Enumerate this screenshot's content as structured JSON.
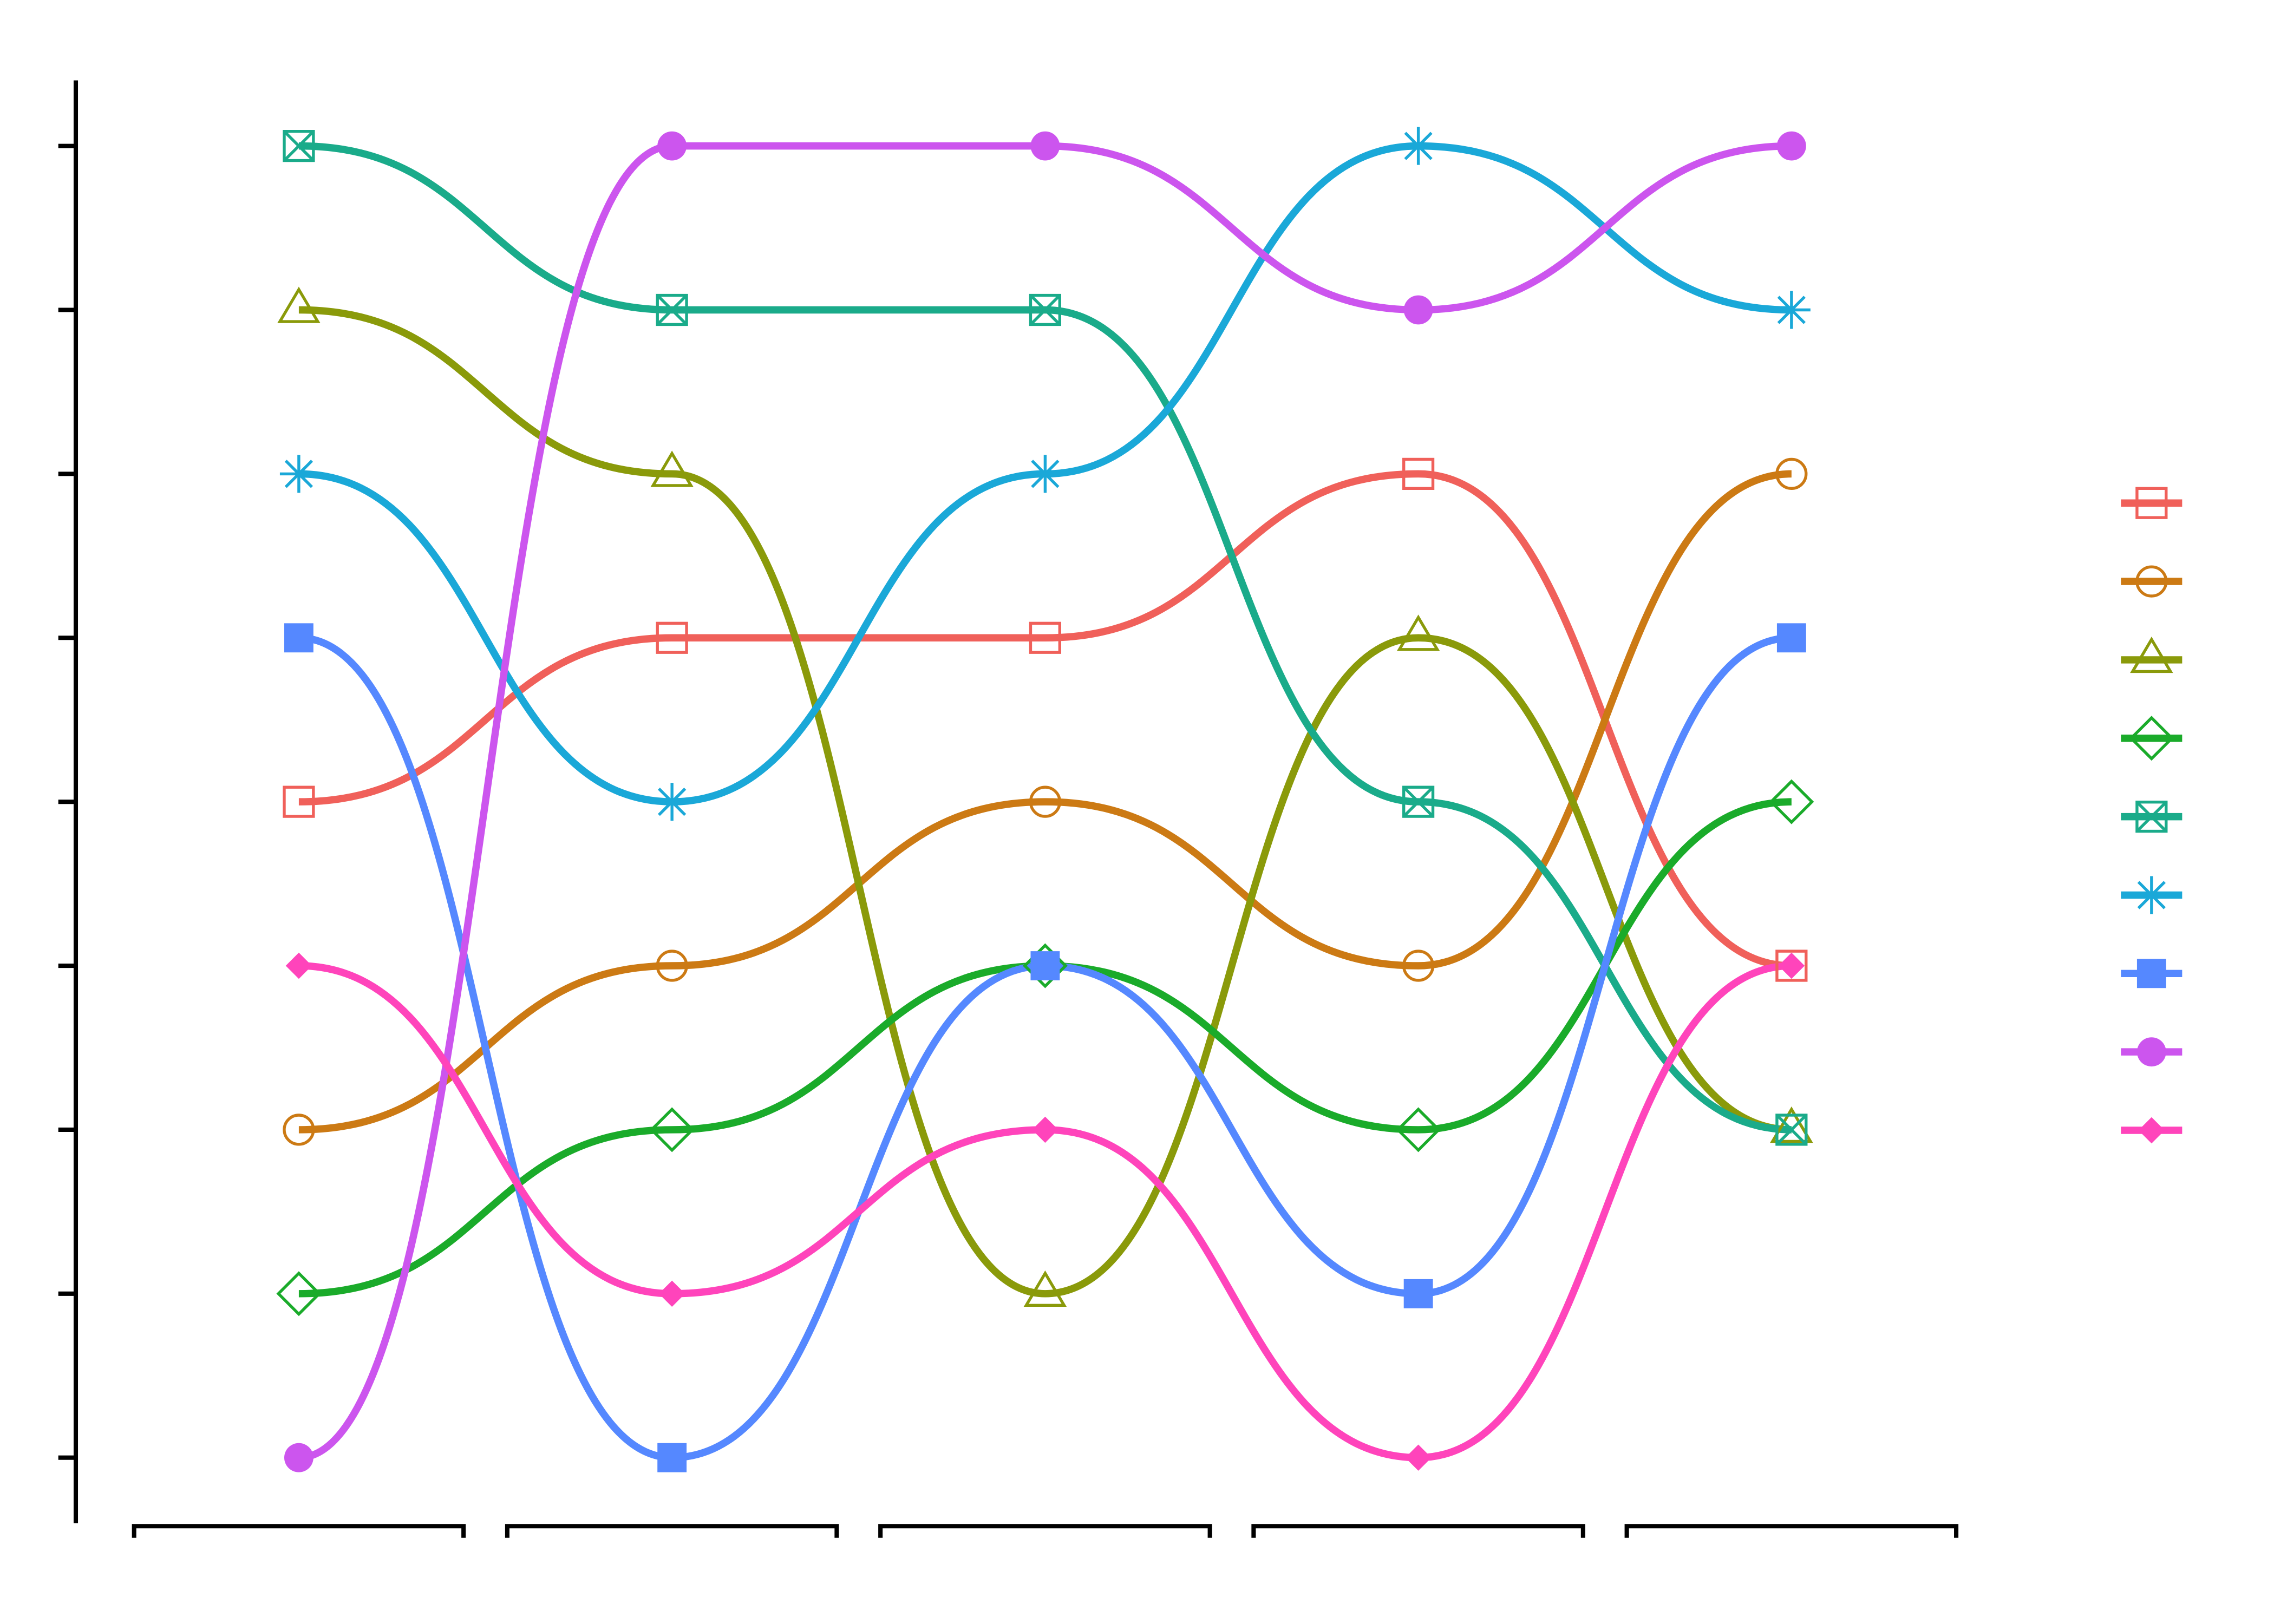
{
  "chart_data": {
    "type": "bump",
    "categories": [
      null,
      null,
      null,
      null,
      null
    ],
    "ylim": [
      0.6,
      9.4
    ],
    "y_reversed": true,
    "yticks": [
      1,
      2,
      3,
      4,
      5,
      6,
      7,
      8,
      9
    ],
    "legend": "right",
    "series": [
      {
        "color": "#f0605a",
        "marker": "square-open",
        "values": [
          5,
          4,
          4,
          3,
          6
        ]
      },
      {
        "color": "#cc7a14",
        "marker": "circle-open",
        "values": [
          7,
          6,
          5,
          6,
          3
        ]
      },
      {
        "color": "#8a9a0a",
        "marker": "triangle-open",
        "values": [
          2,
          3,
          8,
          4,
          7
        ]
      },
      {
        "color": "#1aab2a",
        "marker": "diamond-open",
        "values": [
          8,
          7,
          6,
          7,
          5
        ]
      },
      {
        "color": "#1aab8a",
        "marker": "square-x",
        "values": [
          1,
          2,
          2,
          5,
          7
        ]
      },
      {
        "color": "#1aa8d8",
        "marker": "asterisk",
        "values": [
          3,
          5,
          3,
          1,
          2
        ]
      },
      {
        "color": "#5588ff",
        "marker": "square",
        "values": [
          4,
          9,
          6,
          8,
          4
        ]
      },
      {
        "color": "#cc55ee",
        "marker": "circle",
        "values": [
          9,
          1,
          1,
          2,
          1
        ]
      },
      {
        "color": "#ff44bb",
        "marker": "diamond",
        "values": [
          6,
          8,
          7,
          9,
          6
        ]
      }
    ]
  }
}
